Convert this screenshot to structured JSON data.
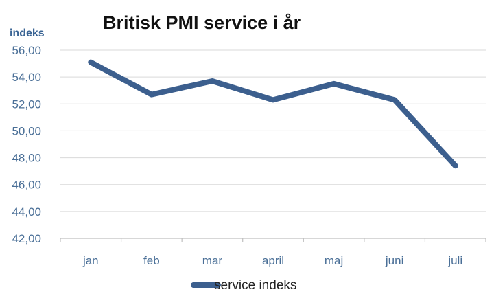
{
  "chart_data": {
    "type": "line",
    "title": "Britisk PMI service i år",
    "ylabel": "indeks",
    "xlabel": "",
    "categories": [
      "jan",
      "feb",
      "mar",
      "april",
      "maj",
      "juni",
      "juli"
    ],
    "series": [
      {
        "name": "service indeks",
        "values": [
          55.1,
          52.7,
          53.7,
          52.3,
          53.5,
          52.3,
          47.4
        ],
        "color": "#3c5f8e"
      }
    ],
    "ylim": [
      42,
      56
    ],
    "yticks": [
      "42,00",
      "44,00",
      "46,00",
      "48,00",
      "50,00",
      "52,00",
      "54,00",
      "56,00"
    ],
    "grid": true,
    "legend": "bottom"
  }
}
